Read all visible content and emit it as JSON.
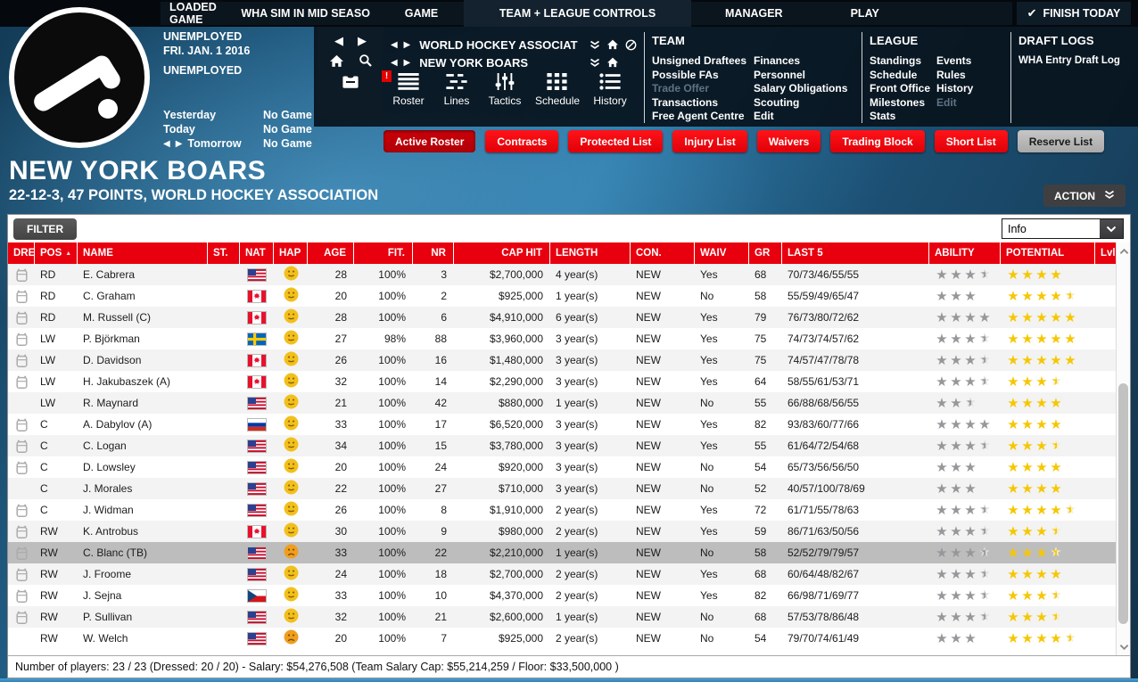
{
  "top_bar": {
    "loaded_game_label": "LOADED GAME",
    "loaded_game_value": "WHA SIM IN MID SEASO",
    "tabs": [
      "GAME",
      "TEAM + LEAGUE CONTROLS",
      "MANAGER",
      "PLAY"
    ],
    "finish_today": "FINISH TODAY"
  },
  "status": {
    "line1": "UNEMPLOYED",
    "line2": "FRI. JAN. 1 2016",
    "line3": "UNEMPLOYED"
  },
  "schedule": [
    {
      "day": "Yesterday",
      "game": "No Game",
      "arrows": false
    },
    {
      "day": "Today",
      "game": "No Game",
      "arrows": false
    },
    {
      "day": "Tomorrow",
      "game": "No Game",
      "arrows": true
    }
  ],
  "nav": {
    "league": "WORLD HOCKEY ASSOCIATION",
    "team": "NEW YORK BOARS",
    "views": [
      "Roster",
      "Lines",
      "Tactics",
      "Schedule",
      "History"
    ]
  },
  "menus": {
    "team": {
      "title": "TEAM",
      "col1": [
        {
          "label": "Unsigned Draftees",
          "enabled": true
        },
        {
          "label": "Possible FAs",
          "enabled": true
        },
        {
          "label": "Trade Offer",
          "enabled": false
        },
        {
          "label": "Transactions",
          "enabled": true
        },
        {
          "label": "Free Agent Centre",
          "enabled": true
        }
      ],
      "col2": [
        {
          "label": "Finances",
          "enabled": true
        },
        {
          "label": "Personnel",
          "enabled": true
        },
        {
          "label": "Salary Obligations",
          "enabled": true
        },
        {
          "label": "Scouting",
          "enabled": true
        },
        {
          "label": "Edit",
          "enabled": true
        }
      ]
    },
    "league": {
      "title": "LEAGUE",
      "col1": [
        {
          "label": "Standings",
          "enabled": true
        },
        {
          "label": "Schedule",
          "enabled": true
        },
        {
          "label": "Front Office",
          "enabled": true
        },
        {
          "label": "Milestones",
          "enabled": true
        },
        {
          "label": "Stats",
          "enabled": true
        }
      ],
      "col2": [
        {
          "label": "Events",
          "enabled": true
        },
        {
          "label": "Rules",
          "enabled": true
        },
        {
          "label": "History",
          "enabled": true
        },
        {
          "label": "Edit",
          "enabled": false
        }
      ]
    },
    "draft": {
      "title": "DRAFT LOGS",
      "items": [
        {
          "label": "WHA Entry Draft Log",
          "enabled": true
        }
      ]
    }
  },
  "subtabs": [
    {
      "label": "Active Roster",
      "state": "active"
    },
    {
      "label": "Contracts",
      "state": "normal"
    },
    {
      "label": "Protected List",
      "state": "normal"
    },
    {
      "label": "Injury List",
      "state": "normal"
    },
    {
      "label": "Waivers",
      "state": "normal"
    },
    {
      "label": "Trading Block",
      "state": "normal"
    },
    {
      "label": "Short List",
      "state": "normal"
    },
    {
      "label": "Reserve List",
      "state": "gray"
    }
  ],
  "team_header": {
    "name": "NEW YORK BOARS",
    "record": "22-12-3, 47 POINTS, WORLD HOCKEY ASSOCIATION",
    "action_label": "ACTION"
  },
  "roster": {
    "filter_label": "FILTER",
    "info_dropdown": "Info",
    "sorted_by": "POS",
    "columns": [
      "DRE",
      "POS",
      "NAME",
      "ST.",
      "NAT",
      "HAP",
      "AGE",
      "FIT.",
      "NR",
      "CAP HIT",
      "LENGTH",
      "CON.",
      "WAIV",
      "GR",
      "LAST 5",
      "ABILITY",
      "POTENTIAL",
      "Lvl"
    ],
    "players": [
      {
        "dre": true,
        "pos": "RD",
        "name": "E. Cabrera",
        "st": "",
        "nat": "us",
        "hap": "neutral",
        "age": 28,
        "fit": "100%",
        "nr": 3,
        "cap_hit": "$2,700,000",
        "length": "4 year(s)",
        "con": "NEW",
        "waiv": "Yes",
        "gr": 68,
        "last5": "70/73/46/55/55",
        "ability": 3.5,
        "potential": 4,
        "lvl": "",
        "selected": false
      },
      {
        "dre": true,
        "pos": "RD",
        "name": "C. Graham",
        "st": "",
        "nat": "ca",
        "hap": "neutral",
        "age": 20,
        "fit": "100%",
        "nr": 2,
        "cap_hit": "$925,000",
        "length": "1 year(s)",
        "con": "NEW",
        "waiv": "No",
        "gr": 58,
        "last5": "55/59/49/65/47",
        "ability": 3,
        "potential": 4.5,
        "lvl": "",
        "selected": false
      },
      {
        "dre": true,
        "pos": "RD",
        "name": "M. Russell (C)",
        "st": "",
        "nat": "ca",
        "hap": "neutral",
        "age": 28,
        "fit": "100%",
        "nr": 6,
        "cap_hit": "$4,910,000",
        "length": "6 year(s)",
        "con": "NEW",
        "waiv": "Yes",
        "gr": 79,
        "last5": "76/73/80/72/62",
        "ability": 4,
        "potential": 5,
        "lvl": "",
        "selected": false
      },
      {
        "dre": true,
        "pos": "LW",
        "name": "P. Björkman",
        "st": "",
        "nat": "se",
        "hap": "neutral",
        "age": 27,
        "fit": "98%",
        "nr": 88,
        "cap_hit": "$3,960,000",
        "length": "3 year(s)",
        "con": "NEW",
        "waiv": "Yes",
        "gr": 75,
        "last5": "74/73/74/57/62",
        "ability": 3.5,
        "potential": 5,
        "lvl": "",
        "selected": false
      },
      {
        "dre": true,
        "pos": "LW",
        "name": "D. Davidson",
        "st": "",
        "nat": "ca",
        "hap": "neutral",
        "age": 26,
        "fit": "100%",
        "nr": 16,
        "cap_hit": "$1,480,000",
        "length": "3 year(s)",
        "con": "NEW",
        "waiv": "Yes",
        "gr": 75,
        "last5": "74/57/47/78/78",
        "ability": 3.5,
        "potential": 5,
        "lvl": "",
        "selected": false
      },
      {
        "dre": true,
        "pos": "LW",
        "name": "H. Jakubaszek (A)",
        "st": "",
        "nat": "ca",
        "hap": "neutral",
        "age": 32,
        "fit": "100%",
        "nr": 14,
        "cap_hit": "$2,290,000",
        "length": "3 year(s)",
        "con": "NEW",
        "waiv": "Yes",
        "gr": 64,
        "last5": "58/55/61/53/71",
        "ability": 3.5,
        "potential": 3.5,
        "lvl": "",
        "selected": false
      },
      {
        "dre": false,
        "pos": "LW",
        "name": "R. Maynard",
        "st": "",
        "nat": "us",
        "hap": "neutral",
        "age": 21,
        "fit": "100%",
        "nr": 42,
        "cap_hit": "$880,000",
        "length": "1 year(s)",
        "con": "NEW",
        "waiv": "No",
        "gr": 55,
        "last5": "66/88/68/56/55",
        "ability": 2.5,
        "potential": 4,
        "lvl": "",
        "selected": false
      },
      {
        "dre": true,
        "pos": "C",
        "name": "A. Dabylov (A)",
        "st": "",
        "nat": "ru",
        "hap": "neutral",
        "age": 33,
        "fit": "100%",
        "nr": 17,
        "cap_hit": "$6,520,000",
        "length": "3 year(s)",
        "con": "NEW",
        "waiv": "Yes",
        "gr": 82,
        "last5": "93/83/60/77/66",
        "ability": 4,
        "potential": 4,
        "lvl": "",
        "selected": false
      },
      {
        "dre": true,
        "pos": "C",
        "name": "C. Logan",
        "st": "",
        "nat": "us",
        "hap": "neutral",
        "age": 34,
        "fit": "100%",
        "nr": 15,
        "cap_hit": "$3,780,000",
        "length": "3 year(s)",
        "con": "NEW",
        "waiv": "Yes",
        "gr": 55,
        "last5": "61/64/72/54/68",
        "ability": 3.5,
        "potential": 3.5,
        "lvl": "",
        "selected": false
      },
      {
        "dre": true,
        "pos": "C",
        "name": "D. Lowsley",
        "st": "",
        "nat": "us",
        "hap": "neutral",
        "age": 20,
        "fit": "100%",
        "nr": 24,
        "cap_hit": "$920,000",
        "length": "3 year(s)",
        "con": "NEW",
        "waiv": "No",
        "gr": 54,
        "last5": "65/73/56/56/50",
        "ability": 3,
        "potential": 4,
        "lvl": "",
        "selected": false
      },
      {
        "dre": false,
        "pos": "C",
        "name": "J. Morales",
        "st": "",
        "nat": "us",
        "hap": "neutral",
        "age": 22,
        "fit": "100%",
        "nr": 27,
        "cap_hit": "$710,000",
        "length": "3 year(s)",
        "con": "NEW",
        "waiv": "No",
        "gr": 52,
        "last5": "40/57/100/78/69",
        "ability": 3,
        "potential": 4,
        "lvl": "",
        "selected": false
      },
      {
        "dre": true,
        "pos": "C",
        "name": "J. Widman",
        "st": "",
        "nat": "us",
        "hap": "neutral",
        "age": 26,
        "fit": "100%",
        "nr": 8,
        "cap_hit": "$1,910,000",
        "length": "2 year(s)",
        "con": "NEW",
        "waiv": "Yes",
        "gr": 72,
        "last5": "61/71/55/78/63",
        "ability": 3.5,
        "potential": 4.5,
        "lvl": "",
        "selected": false
      },
      {
        "dre": true,
        "pos": "RW",
        "name": "K. Antrobus",
        "st": "",
        "nat": "ca",
        "hap": "neutral",
        "age": 30,
        "fit": "100%",
        "nr": 9,
        "cap_hit": "$980,000",
        "length": "2 year(s)",
        "con": "NEW",
        "waiv": "Yes",
        "gr": 59,
        "last5": "86/71/63/50/56",
        "ability": 3.5,
        "potential": 3.5,
        "lvl": "",
        "selected": false
      },
      {
        "dre": true,
        "pos": "RW",
        "name": "C. Blanc (TB)",
        "st": "",
        "nat": "us",
        "hap": "unhappy",
        "age": 33,
        "fit": "100%",
        "nr": 22,
        "cap_hit": "$2,210,000",
        "length": "1 year(s)",
        "con": "NEW",
        "waiv": "No",
        "gr": 58,
        "last5": "52/52/79/79/57",
        "ability": 3.5,
        "potential": 3.5,
        "lvl": "",
        "selected": true
      },
      {
        "dre": true,
        "pos": "RW",
        "name": "J. Froome",
        "st": "",
        "nat": "us",
        "hap": "neutral",
        "age": 24,
        "fit": "100%",
        "nr": 18,
        "cap_hit": "$2,700,000",
        "length": "2 year(s)",
        "con": "NEW",
        "waiv": "Yes",
        "gr": 68,
        "last5": "60/64/48/82/67",
        "ability": 3.5,
        "potential": 4,
        "lvl": "",
        "selected": false
      },
      {
        "dre": true,
        "pos": "RW",
        "name": "J. Sejna",
        "st": "",
        "nat": "cz",
        "hap": "neutral",
        "age": 33,
        "fit": "100%",
        "nr": 10,
        "cap_hit": "$4,370,000",
        "length": "2 year(s)",
        "con": "NEW",
        "waiv": "Yes",
        "gr": 82,
        "last5": "66/98/71/69/77",
        "ability": 3.5,
        "potential": 3.5,
        "lvl": "",
        "selected": false
      },
      {
        "dre": true,
        "pos": "RW",
        "name": "P. Sullivan",
        "st": "",
        "nat": "us",
        "hap": "neutral",
        "age": 32,
        "fit": "100%",
        "nr": 21,
        "cap_hit": "$2,600,000",
        "length": "1 year(s)",
        "con": "NEW",
        "waiv": "No",
        "gr": 68,
        "last5": "57/53/78/86/48",
        "ability": 3.5,
        "potential": 3.5,
        "lvl": "",
        "selected": false
      },
      {
        "dre": false,
        "pos": "RW",
        "name": "W. Welch",
        "st": "",
        "nat": "us",
        "hap": "unhappy",
        "age": 20,
        "fit": "100%",
        "nr": 7,
        "cap_hit": "$925,000",
        "length": "2 year(s)",
        "con": "NEW",
        "waiv": "No",
        "gr": 54,
        "last5": "79/70/74/61/49",
        "ability": 3,
        "potential": 4.5,
        "lvl": "",
        "selected": false
      }
    ],
    "footer": "Number of players: 23 / 23 (Dressed: 20 / 20)  -   Salary: $54,276,508  (Team Salary Cap: $55,214,259 / Floor: $33,500,000 )"
  },
  "colors": {
    "header_red": "#e8000e",
    "subtab_red": "#ee0a12",
    "subtab_active_red": "#bf0008",
    "reserve_gray": "#b9b9b9",
    "star_ability_gray": "#97979b",
    "star_potential_gold": "#f6c700",
    "selected_row_gray": "#bdbdbd",
    "happy_face_yellow": "#f2c01c",
    "unhappy_face_orange": "#ef9e1e"
  }
}
